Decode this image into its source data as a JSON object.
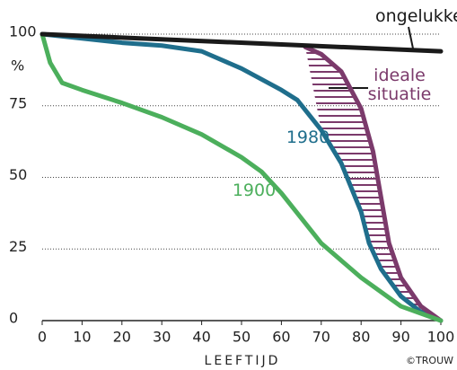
{
  "chart_data": {
    "type": "line",
    "ylabel": "%",
    "xlabel": "LEEFTIJD",
    "credit": "©TROUW",
    "xlim": [
      0,
      100
    ],
    "ylim": [
      0,
      100
    ],
    "xticks": [
      0,
      10,
      20,
      30,
      40,
      50,
      60,
      70,
      80,
      90,
      100
    ],
    "yticks": [
      0,
      25,
      50,
      75,
      100
    ],
    "grid": true,
    "series": [
      {
        "name": "1980",
        "color": "#1f6e8c",
        "x": [
          0,
          10,
          20,
          30,
          40,
          50,
          60,
          64,
          70,
          75,
          80,
          82,
          85,
          90,
          95,
          100
        ],
        "values": [
          100,
          98.5,
          97,
          96,
          94,
          88,
          80.5,
          77,
          66.5,
          55,
          38,
          27,
          18,
          8.5,
          3,
          0
        ]
      },
      {
        "name": "ideale situatie",
        "color": "#7b3a6b",
        "x": [
          66,
          70,
          75,
          80,
          83,
          85,
          87,
          90,
          95,
          100
        ],
        "values": [
          95.5,
          93,
          87,
          74,
          59,
          43,
          27,
          15,
          5,
          0
        ]
      },
      {
        "name": "1900",
        "color": "#4caf5c",
        "x": [
          0,
          2,
          5,
          10,
          20,
          30,
          40,
          50,
          55,
          60,
          70,
          80,
          90,
          100
        ],
        "values": [
          100,
          90,
          83,
          80.5,
          76,
          71,
          65,
          57,
          52,
          44.5,
          27,
          15,
          5,
          0
        ]
      },
      {
        "name": "ongelukken",
        "color": "#1a1a1a",
        "x": [
          0,
          100
        ],
        "values": [
          100,
          94
        ]
      }
    ]
  }
}
